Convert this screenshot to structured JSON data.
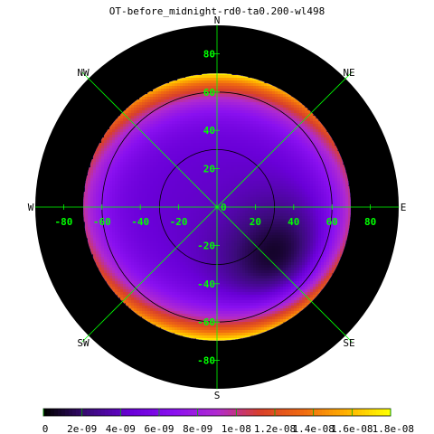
{
  "chart_data": {
    "type": "heatmap",
    "projection": "polar-sky-map",
    "title": "OT-before_midnight-rd0-ta0.200-wl498",
    "x_ticks": [
      -80,
      -60,
      -40,
      -20,
      0,
      20,
      40,
      60,
      80
    ],
    "y_ticks": [
      80,
      60,
      40,
      20,
      0,
      -20,
      -40,
      -60,
      -80
    ],
    "axis_range": [
      -90,
      90
    ],
    "horizon_radius": 70,
    "contour_circles": [
      30,
      60
    ],
    "directions": {
      "north": "N",
      "south": "S",
      "east": "E",
      "west": "W",
      "northeast": "NE",
      "northwest": "NW",
      "southeast": "SE",
      "southwest": "SW"
    },
    "darkest_region": {
      "x": 35,
      "y": -30,
      "value": 0
    },
    "edge_value_top_bottom": 1.8e-08,
    "edge_value_left_right": 1e-08,
    "colorbar": {
      "min": 0,
      "max": 1.8e-08,
      "tick_labels": [
        "0",
        "2e-09",
        "4e-09",
        "6e-09",
        "8e-09",
        "1e-08",
        "1.2e-08",
        "1.4e-08",
        "1.6e-08",
        "1.8e-08"
      ],
      "colormap": [
        "#000000",
        "#3b0b7a",
        "#6a00d8",
        "#8a10f0",
        "#b02ad0",
        "#d8402a",
        "#f06a10",
        "#ffb000",
        "#ffff00"
      ]
    },
    "colors": {
      "background": "#000000",
      "grid": "#00ff00",
      "tick_label": "#00ff00",
      "contour": "#000000"
    },
    "grid": true
  }
}
